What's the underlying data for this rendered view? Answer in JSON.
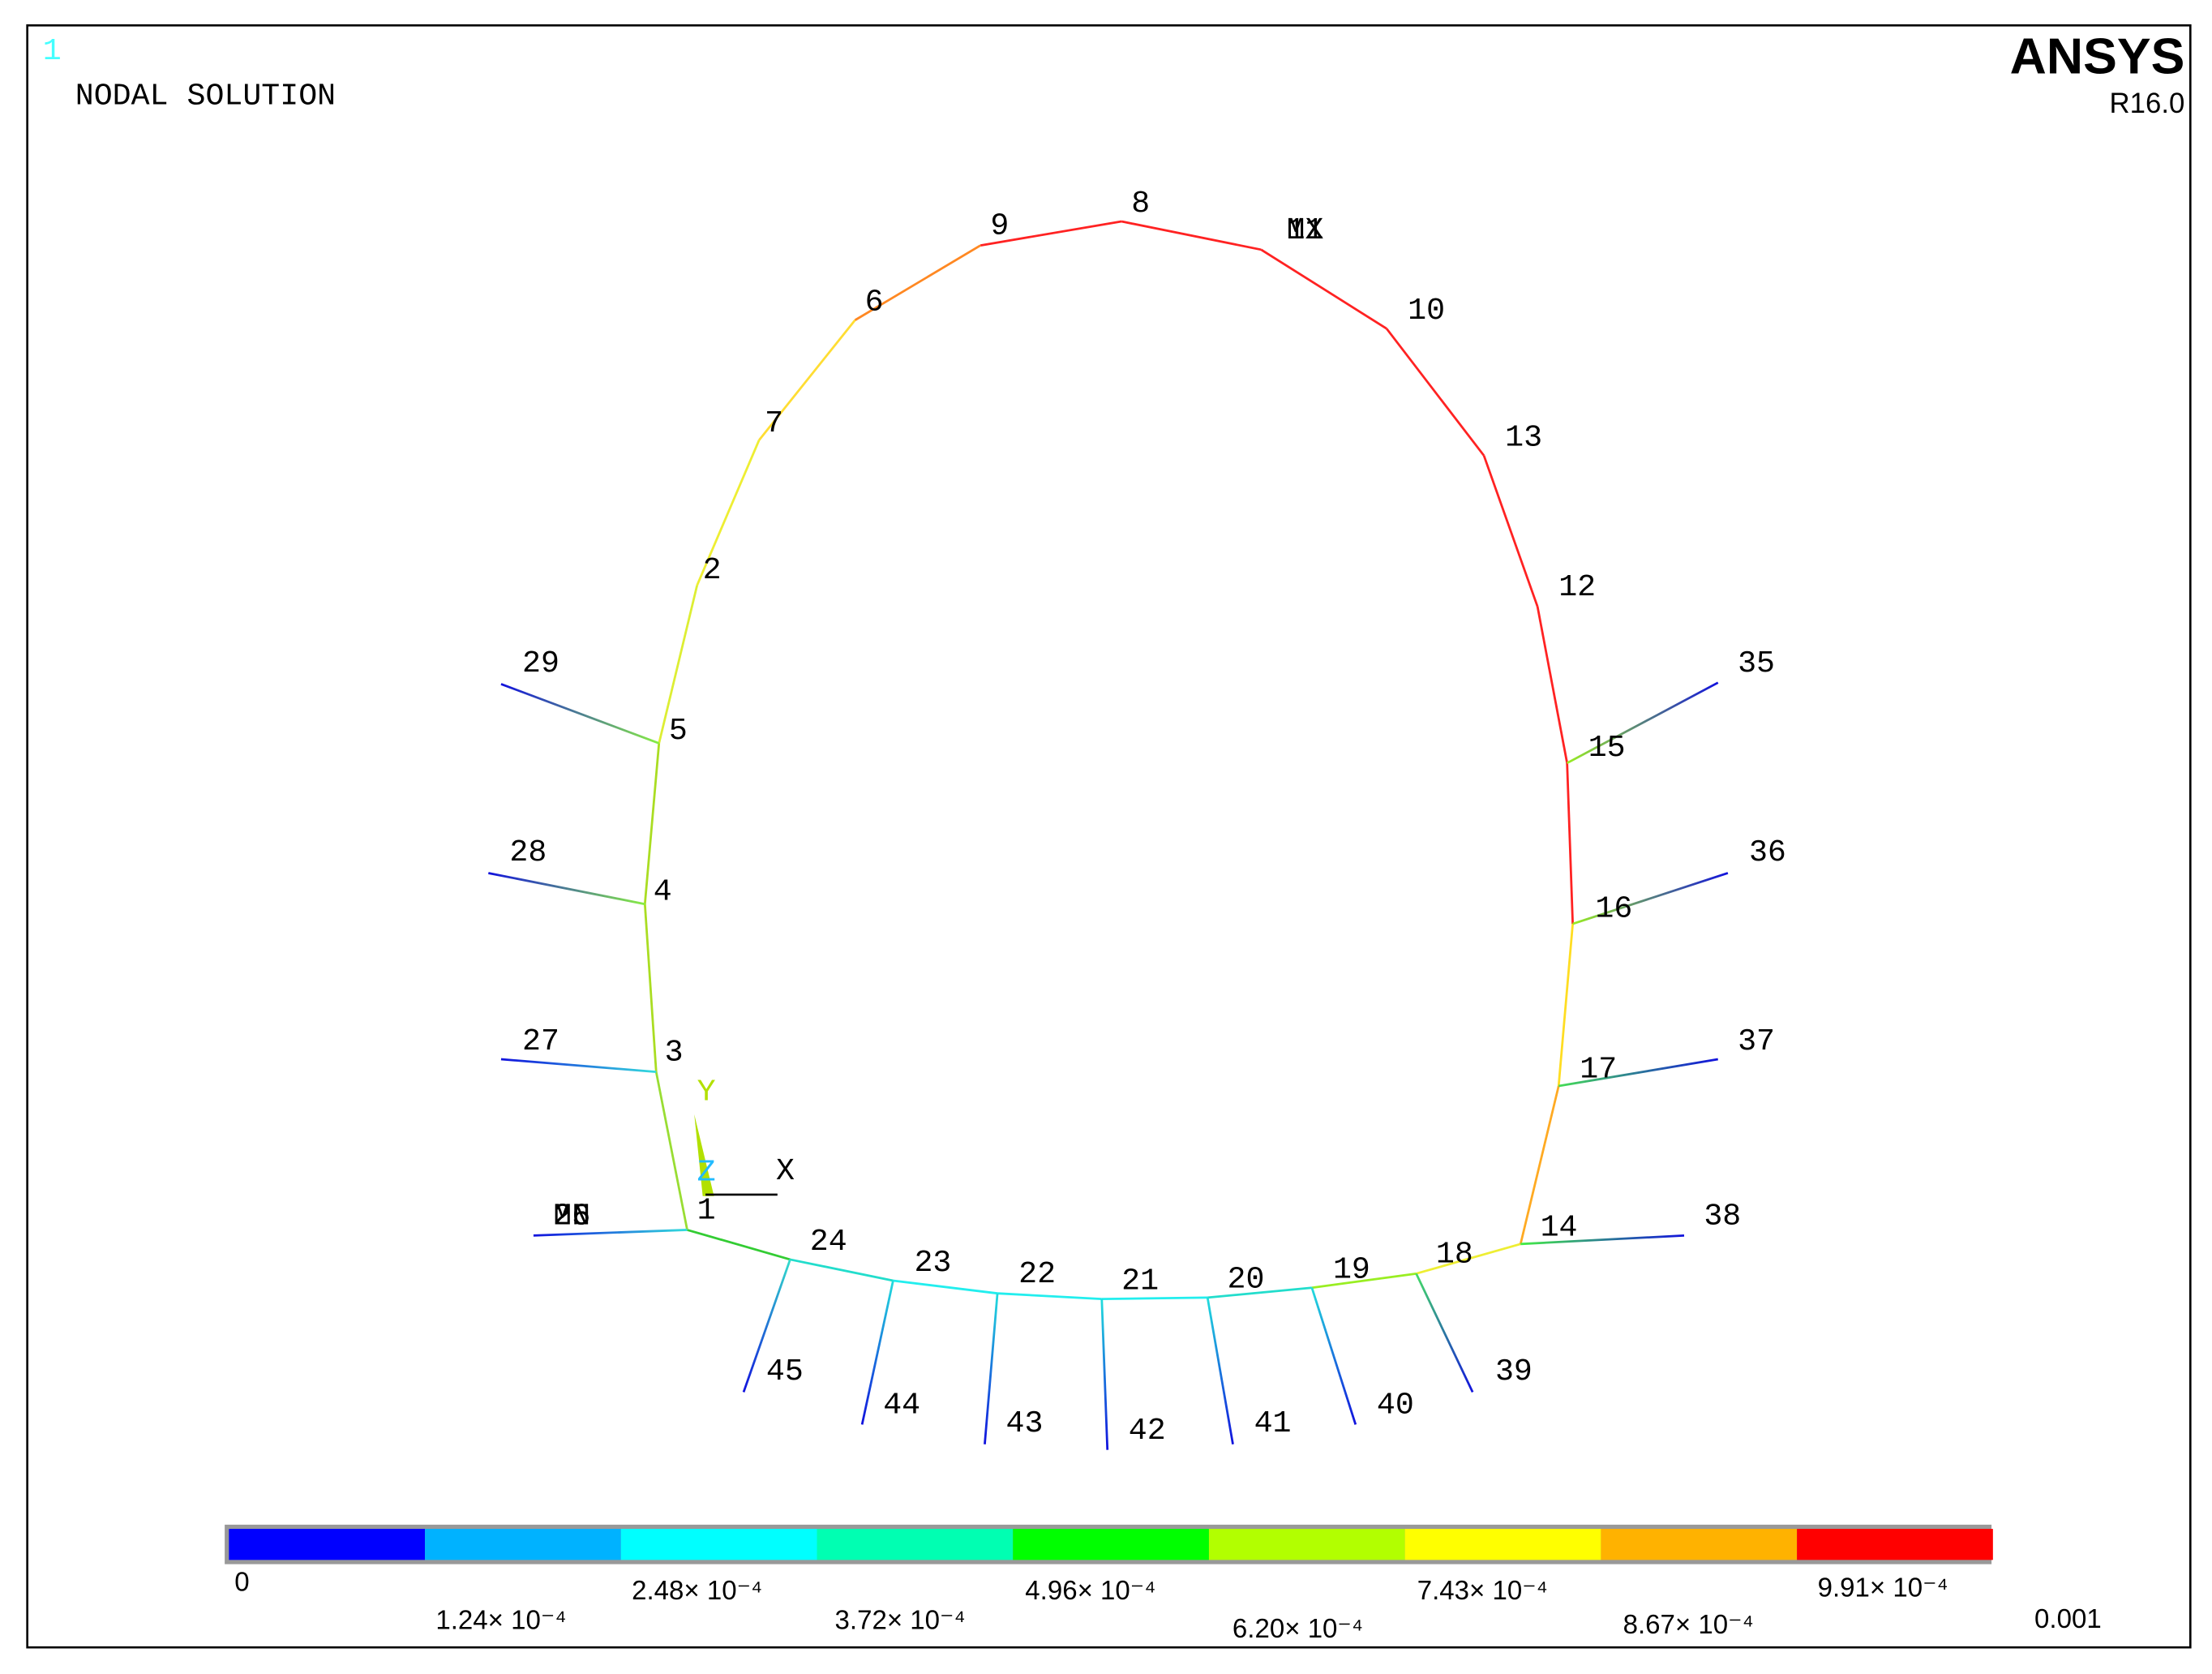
{
  "header": {
    "window_number": "1",
    "title": "NODAL SOLUTION",
    "brand": "ANSYS",
    "version": "R16.0"
  },
  "triad": {
    "y": "Y",
    "z": "Z",
    "x": "X"
  },
  "nodes": [
    "1",
    "24",
    "23",
    "22",
    "21",
    "20",
    "19",
    "18",
    "14",
    "17",
    "16",
    "15",
    "12",
    "13",
    "10",
    "11",
    "MX",
    "8",
    "9",
    "6",
    "7",
    "2",
    "5",
    "4",
    "3",
    "29",
    "28",
    "27",
    "25",
    "26",
    "MN",
    "35",
    "36",
    "37",
    "38",
    "39",
    "40",
    "41",
    "42",
    "43",
    "44",
    "45"
  ],
  "legend": {
    "labels": [
      "0",
      "1.24× 10⁻⁴",
      "2.48× 10⁻⁴",
      "3.72× 10⁻⁴",
      "4.96× 10⁻⁴",
      "6.20× 10⁻⁴",
      "7.43× 10⁻⁴",
      "8.67× 10⁻⁴",
      "9.91× 10⁻⁴",
      "0.001"
    ]
  }
}
